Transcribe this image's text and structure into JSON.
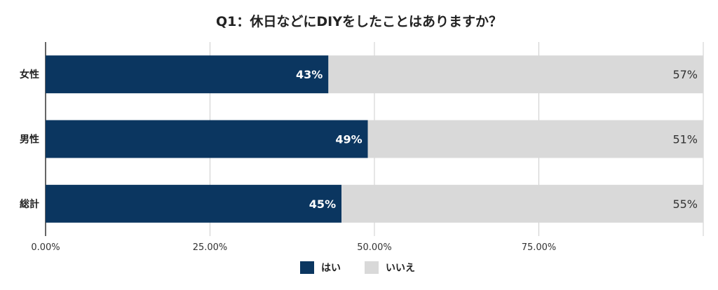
{
  "chart_data": {
    "type": "bar",
    "orientation": "horizontal",
    "stacked": true,
    "title": "Q1：休日などにDIYをしたことはありますか？",
    "categories": [
      "女性",
      "男性",
      "総計"
    ],
    "series": [
      {
        "name": "はい",
        "values": [
          43,
          49,
          45
        ],
        "labels": [
          "43%",
          "49%",
          "45%"
        ],
        "color": "#0b3660"
      },
      {
        "name": "いいえ",
        "values": [
          57,
          51,
          55
        ],
        "labels": [
          "57%",
          "51%",
          "55%"
        ],
        "color": "#d9d9d9"
      }
    ],
    "xlim": [
      0,
      100
    ],
    "x_ticks": [
      0,
      25,
      50,
      75
    ],
    "x_tick_labels": [
      "0.00%",
      "25.00%",
      "50.00%",
      "75.00%"
    ],
    "grid": true,
    "legend_position": "bottom"
  }
}
